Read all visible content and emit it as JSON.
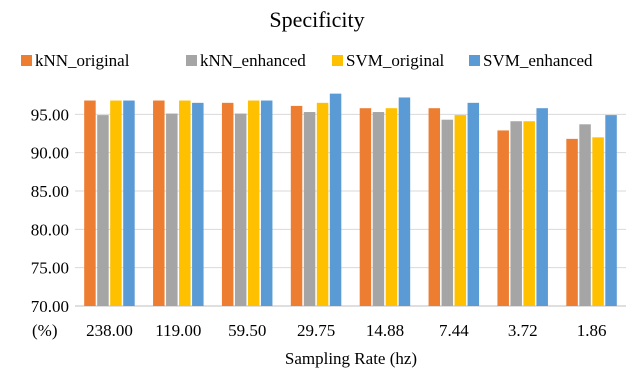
{
  "chart_data": {
    "type": "bar",
    "title": "Specificity",
    "xlabel": "Sampling Rate (hz)",
    "ylabel": "",
    "y_unit_label": "(%)",
    "categories": [
      "238.00",
      "119.00",
      "59.50",
      "29.75",
      "14.88",
      "7.44",
      "3.72",
      "1.86"
    ],
    "ylim": [
      70,
      97
    ],
    "yticks": [
      "70.00",
      "75.00",
      "80.00",
      "85.00",
      "90.00",
      "95.00"
    ],
    "grid": true,
    "legend_position": "top",
    "series": [
      {
        "name": "kNN_original",
        "color": "#ed7d31",
        "values": [
          96.8,
          96.8,
          96.5,
          96.1,
          95.8,
          95.8,
          92.9,
          91.8
        ]
      },
      {
        "name": "kNN_enhanced",
        "color": "#a5a5a5",
        "values": [
          94.9,
          95.1,
          95.1,
          95.3,
          95.3,
          94.3,
          94.1,
          93.7
        ]
      },
      {
        "name": "SVM_original",
        "color": "#ffc000",
        "values": [
          96.8,
          96.8,
          96.8,
          96.5,
          95.8,
          94.9,
          94.1,
          92.0
        ]
      },
      {
        "name": "SVM_enhanced",
        "color": "#5b9bd5",
        "values": [
          96.8,
          96.5,
          96.8,
          97.7,
          97.2,
          96.5,
          95.8,
          94.9
        ]
      }
    ]
  }
}
